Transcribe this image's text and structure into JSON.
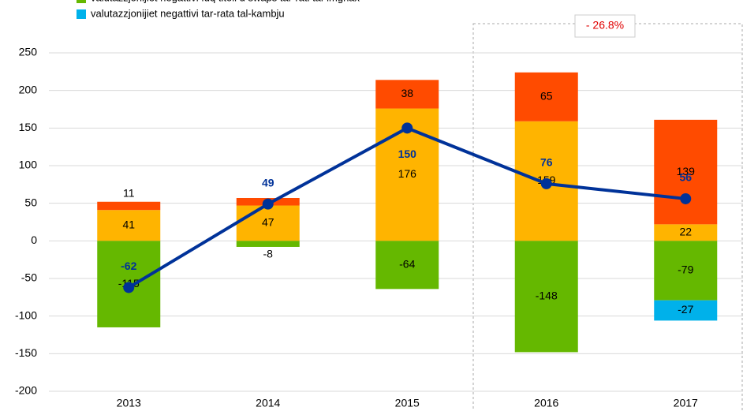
{
  "chart_data": {
    "type": "bar",
    "categories": [
      "2013",
      "2014",
      "2015",
      "2016",
      "2017"
    ],
    "series": [
      {
        "color": "#ffb400",
        "values": [
          41,
          47,
          176,
          159,
          22
        ],
        "value_labels": [
          "41",
          "47",
          "176",
          "159",
          "22"
        ]
      },
      {
        "color": "#ff4b00",
        "values": [
          11,
          10,
          38,
          65,
          139
        ],
        "value_labels": [
          "11",
          null,
          "38",
          "65",
          "139"
        ]
      },
      {
        "name": "valutazzjonijiet negattivi fuq titoli u swaps tar-rati tal-imgħax",
        "color": "#65b800",
        "values": [
          -115,
          -8,
          -64,
          -148,
          -79
        ],
        "value_labels": [
          "-115",
          "-8",
          "-64",
          "-148",
          "-79"
        ]
      },
      {
        "name": "valutazzjonijiet negattivi tar-rata tal-kambju",
        "color": "#00b1ea",
        "values": [
          null,
          null,
          null,
          null,
          -27
        ],
        "value_labels": [
          null,
          null,
          null,
          null,
          "-27"
        ]
      },
      {
        "type": "line",
        "color": "#003299",
        "values": [
          -62,
          49,
          150,
          76,
          56
        ],
        "value_labels": [
          "-62",
          "49",
          "150",
          "76",
          "56"
        ]
      }
    ],
    "annotations": [
      "- 26.8%"
    ],
    "ylim": [
      -200,
      250
    ],
    "yticks": [
      -200,
      -150,
      -100,
      -50,
      0,
      50,
      100,
      150,
      200,
      250
    ],
    "grid": true
  }
}
